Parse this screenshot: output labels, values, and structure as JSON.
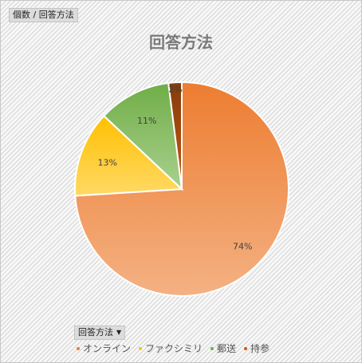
{
  "header": {
    "field_button": "個数 / 回答方法"
  },
  "chart_data": {
    "type": "pie",
    "title": "回答方法",
    "categories": [
      "オンライン",
      "ファクシミリ",
      "郵送",
      "持参"
    ],
    "values": [
      74,
      13,
      11,
      2
    ],
    "data_labels": [
      "74%",
      "13%",
      "11%",
      "2%"
    ],
    "colors": [
      "#ed7d31",
      "#ffc000",
      "#70ad47",
      "#c55a11"
    ],
    "legend_position": "bottom"
  },
  "legend": {
    "field_button": "回答方法",
    "items": [
      {
        "label": "オンライン",
        "color": "#ed7d31"
      },
      {
        "label": "ファクシミリ",
        "color": "#ffc000"
      },
      {
        "label": "郵送",
        "color": "#70ad47"
      },
      {
        "label": "持参",
        "color": "#c55a11"
      }
    ]
  }
}
